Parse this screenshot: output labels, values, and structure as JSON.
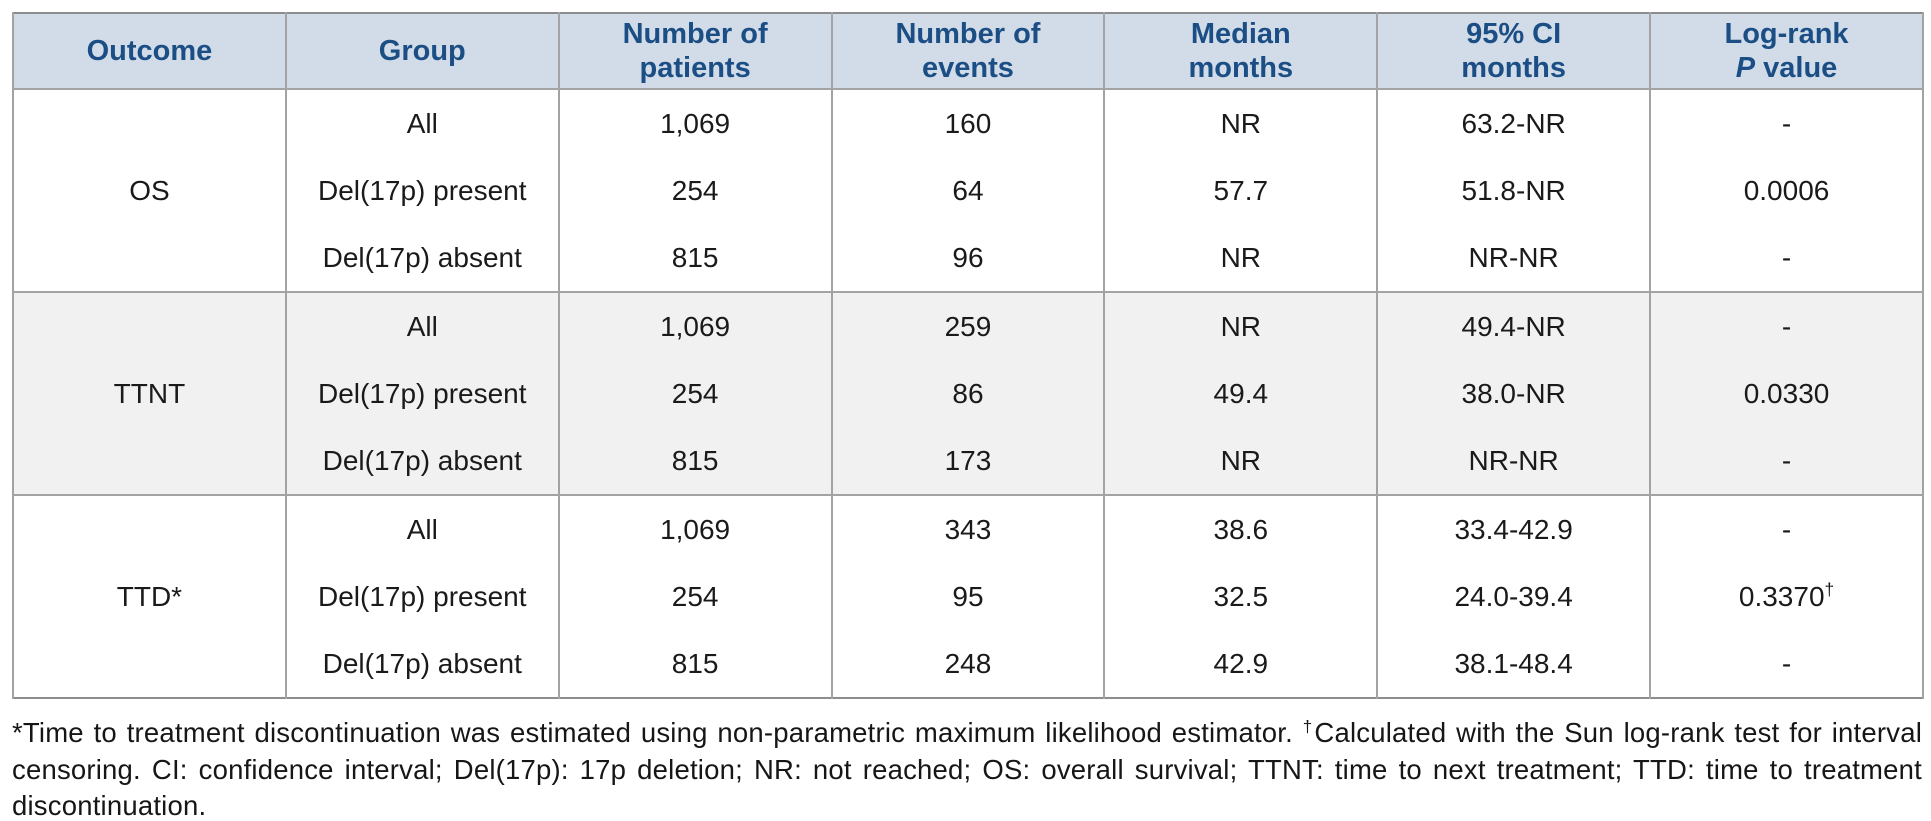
{
  "table": {
    "headers": {
      "outcome": "Outcome",
      "group": "Group",
      "patients_l1": "Number of",
      "patients_l2": "patients",
      "events_l1": "Number of",
      "events_l2": "events",
      "median_l1": "Median",
      "median_l2": "months",
      "ci_l1": "95% CI",
      "ci_l2": "months",
      "logrank_l1": "Log-rank",
      "logrank_l2_italic": "P",
      "logrank_l2_rest": " value"
    },
    "sections": [
      {
        "outcome": "OS",
        "rows": [
          {
            "group": "All",
            "patients": "1,069",
            "events": "160",
            "median": "NR",
            "ci": "63.2-NR",
            "p": "-",
            "p_sup": ""
          },
          {
            "group": "Del(17p) present",
            "patients": "254",
            "events": "64",
            "median": "57.7",
            "ci": "51.8-NR",
            "p": "0.0006",
            "p_sup": ""
          },
          {
            "group": "Del(17p) absent",
            "patients": "815",
            "events": "96",
            "median": "NR",
            "ci": "NR-NR",
            "p": "-",
            "p_sup": ""
          }
        ]
      },
      {
        "outcome": "TTNT",
        "rows": [
          {
            "group": "All",
            "patients": "1,069",
            "events": "259",
            "median": "NR",
            "ci": "49.4-NR",
            "p": "-",
            "p_sup": ""
          },
          {
            "group": "Del(17p) present",
            "patients": "254",
            "events": "86",
            "median": "49.4",
            "ci": "38.0-NR",
            "p": "0.0330",
            "p_sup": ""
          },
          {
            "group": "Del(17p) absent",
            "patients": "815",
            "events": "173",
            "median": "NR",
            "ci": "NR-NR",
            "p": "-",
            "p_sup": ""
          }
        ]
      },
      {
        "outcome": "TTD*",
        "rows": [
          {
            "group": "All",
            "patients": "1,069",
            "events": "343",
            "median": "38.6",
            "ci": "33.4-42.9",
            "p": "-",
            "p_sup": ""
          },
          {
            "group": "Del(17p) present",
            "patients": "254",
            "events": "95",
            "median": "32.5",
            "ci": "24.0-39.4",
            "p": "0.3370",
            "p_sup": "†"
          },
          {
            "group": "Del(17p) absent",
            "patients": "815",
            "events": "248",
            "median": "42.9",
            "ci": "38.1-48.4",
            "p": "-",
            "p_sup": ""
          }
        ]
      }
    ]
  },
  "footnote": {
    "part1": "*Time to treatment discontinuation was estimated using non-parametric maximum likelihood estimator. ",
    "dagger": "†",
    "part2": "Calculated with the Sun log-rank test for interval censoring. CI: confidence interval; Del(17p): 17p deletion; NR: not reached; OS: overall survival; TTNT: time to next treatment; TTD: time to treatment discontinuation."
  }
}
